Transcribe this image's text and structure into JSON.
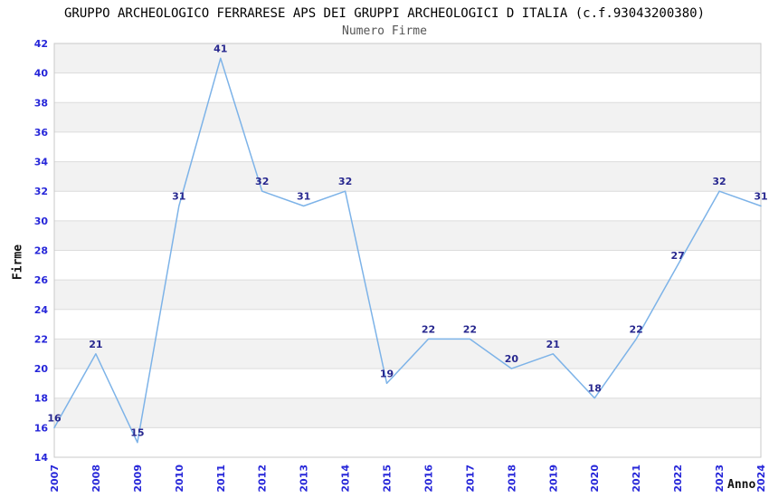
{
  "chart_data": {
    "type": "line",
    "title": "GRUPPO ARCHEOLOGICO FERRARESE APS DEI GRUPPI ARCHEOLOGICI D ITALIA (c.f.93043200380)",
    "subtitle": "Numero Firme",
    "xlabel": "Anno",
    "ylabel": "Firme",
    "categories": [
      "2007",
      "2008",
      "2009",
      "2010",
      "2011",
      "2012",
      "2013",
      "2014",
      "2015",
      "2016",
      "2017",
      "2018",
      "2019",
      "2020",
      "2021",
      "2022",
      "2023",
      "2024"
    ],
    "series": [
      {
        "name": "Numero Firme",
        "values": [
          16,
          21,
          15,
          31,
          41,
          32,
          31,
          32,
          19,
          22,
          22,
          20,
          21,
          18,
          22,
          27,
          32,
          31
        ]
      }
    ],
    "ylim": [
      14,
      42
    ],
    "ytick_step": 2,
    "yticks": [
      14,
      16,
      18,
      20,
      22,
      24,
      26,
      28,
      30,
      32,
      34,
      36,
      38,
      40,
      42
    ],
    "grid": "horizontal",
    "bands": "alternating 2-unit horizontal bands, gray on 16-18, 20-22, 24-26, 28-30, 32-34, 36-38, 40-42",
    "legend_position": "none",
    "point_labels_shown": true,
    "colors": {
      "line": "#7db3e8",
      "tick_label": "#2626d9",
      "value_label": "#28288f",
      "band": "#f2f2f2",
      "gridline": "#dcdcdc",
      "plot_border": "#c8c8c8",
      "title": "#000000",
      "subtitle": "#555555"
    }
  }
}
